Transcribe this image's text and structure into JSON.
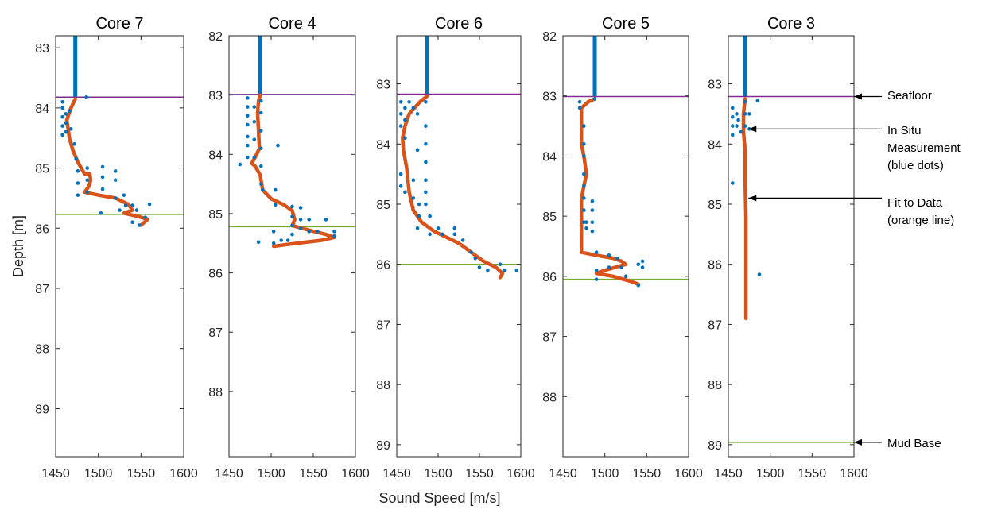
{
  "figure": {
    "ylabel": "Depth [m]",
    "xlabel": "Sound Speed [m/s]"
  },
  "annotations": [
    {
      "lines": [
        "Seafloor"
      ]
    },
    {
      "lines": [
        "In Situ",
        "Measurement",
        "(blue dots)"
      ]
    },
    {
      "lines": [
        "Fit to Data",
        "(orange line)"
      ]
    },
    {
      "lines": [
        "Mud Base"
      ]
    }
  ],
  "colors": {
    "measurement": "#0072BD",
    "fit": "#D95319",
    "seafloor": "#7E2F8E",
    "mud_base": "#77AC30",
    "axis": "#262626"
  },
  "chart_data": [
    {
      "type": "scatter",
      "title": "Core 7",
      "xlim": [
        1450,
        1600
      ],
      "ylim": [
        82.8,
        89.8
      ],
      "y_reversed": true,
      "xticks": [
        1450,
        1500,
        1550,
        1600
      ],
      "yticks": [
        83,
        84,
        85,
        86,
        87,
        88,
        89
      ],
      "seafloor_depth": 83.82,
      "mud_base_depth": 85.77,
      "water_column_speed": 1473,
      "fit": [
        [
          1473,
          83.85
        ],
        [
          1468,
          84.0
        ],
        [
          1463,
          84.2
        ],
        [
          1466,
          84.5
        ],
        [
          1470,
          84.7
        ],
        [
          1476,
          84.9
        ],
        [
          1480,
          85.0
        ],
        [
          1484,
          85.1
        ],
        [
          1490,
          85.1
        ],
        [
          1491,
          85.2
        ],
        [
          1489,
          85.3
        ],
        [
          1484,
          85.4
        ],
        [
          1500,
          85.45
        ],
        [
          1520,
          85.5
        ],
        [
          1535,
          85.6
        ],
        [
          1540,
          85.7
        ],
        [
          1530,
          85.75
        ],
        [
          1545,
          85.8
        ],
        [
          1558,
          85.85
        ],
        [
          1550,
          85.95
        ]
      ],
      "measurements": [
        [
          1458,
          83.9
        ],
        [
          1458,
          84.0
        ],
        [
          1458,
          84.15
        ],
        [
          1458,
          84.3
        ],
        [
          1458,
          84.45
        ],
        [
          1462,
          84.1
        ],
        [
          1462,
          84.25
        ],
        [
          1462,
          84.4
        ],
        [
          1466,
          84.05
        ],
        [
          1468,
          84.35
        ],
        [
          1472,
          84.6
        ],
        [
          1474,
          84.85
        ],
        [
          1476,
          85.05
        ],
        [
          1476,
          85.25
        ],
        [
          1476,
          85.45
        ],
        [
          1486,
          83.82
        ],
        [
          1487,
          85.0
        ],
        [
          1487,
          85.2
        ],
        [
          1487,
          85.4
        ],
        [
          1505,
          84.98
        ],
        [
          1505,
          85.15
        ],
        [
          1505,
          85.35
        ],
        [
          1520,
          85.05
        ],
        [
          1520,
          85.2
        ],
        [
          1520,
          85.5
        ],
        [
          1530,
          85.45
        ],
        [
          1532,
          85.62
        ],
        [
          1540,
          85.62
        ],
        [
          1503,
          85.75
        ],
        [
          1525,
          85.7
        ],
        [
          1545,
          85.7
        ],
        [
          1555,
          85.82
        ],
        [
          1560,
          85.6
        ],
        [
          1548,
          85.95
        ],
        [
          1540,
          85.9
        ]
      ]
    },
    {
      "type": "scatter",
      "title": "Core 4",
      "xlim": [
        1450,
        1600
      ],
      "ylim": [
        82.0,
        89.1
      ],
      "y_reversed": true,
      "xticks": [
        1450,
        1500,
        1550,
        1600
      ],
      "yticks": [
        82,
        83,
        84,
        85,
        86,
        87,
        88
      ],
      "seafloor_depth": 82.99,
      "mud_base_depth": 85.22,
      "water_column_speed": 1487,
      "fit": [
        [
          1487,
          83.0
        ],
        [
          1485,
          83.1
        ],
        [
          1484,
          83.3
        ],
        [
          1485,
          83.6
        ],
        [
          1486,
          83.9
        ],
        [
          1481,
          84.05
        ],
        [
          1477,
          84.15
        ],
        [
          1481,
          84.2
        ],
        [
          1487,
          84.35
        ],
        [
          1490,
          84.6
        ],
        [
          1500,
          84.75
        ],
        [
          1515,
          84.85
        ],
        [
          1525,
          84.95
        ],
        [
          1528,
          85.1
        ],
        [
          1525,
          85.2
        ],
        [
          1545,
          85.28
        ],
        [
          1565,
          85.35
        ],
        [
          1575,
          85.4
        ],
        [
          1560,
          85.45
        ],
        [
          1530,
          85.5
        ],
        [
          1503,
          85.55
        ]
      ],
      "measurements": [
        [
          1472,
          83.05
        ],
        [
          1472,
          83.2
        ],
        [
          1472,
          83.35
        ],
        [
          1472,
          83.5
        ],
        [
          1472,
          83.7
        ],
        [
          1472,
          83.85
        ],
        [
          1472,
          84.05
        ],
        [
          1480,
          83.2
        ],
        [
          1480,
          83.45
        ],
        [
          1480,
          83.75
        ],
        [
          1480,
          84.05
        ],
        [
          1488,
          83.1
        ],
        [
          1488,
          83.3
        ],
        [
          1488,
          83.6
        ],
        [
          1488,
          83.9
        ],
        [
          1488,
          84.2
        ],
        [
          1488,
          84.5
        ],
        [
          1463,
          84.17
        ],
        [
          1508,
          83.85
        ],
        [
          1490,
          84.6
        ],
        [
          1505,
          84.6
        ],
        [
          1505,
          84.85
        ],
        [
          1525,
          84.88
        ],
        [
          1525,
          85.05
        ],
        [
          1525,
          85.2
        ],
        [
          1525,
          85.35
        ],
        [
          1535,
          84.9
        ],
        [
          1535,
          85.1
        ],
        [
          1535,
          85.25
        ],
        [
          1545,
          85.1
        ],
        [
          1545,
          85.3
        ],
        [
          1555,
          85.3
        ],
        [
          1565,
          85.1
        ],
        [
          1575,
          85.3
        ],
        [
          1575,
          85.38
        ],
        [
          1485,
          85.48
        ],
        [
          1503,
          85.5
        ],
        [
          1512,
          85.45
        ],
        [
          1520,
          85.45
        ],
        [
          1503,
          85.3
        ]
      ]
    },
    {
      "type": "scatter",
      "title": "Core 6",
      "xlim": [
        1450,
        1600
      ],
      "ylim": [
        82.2,
        89.2
      ],
      "y_reversed": true,
      "xticks": [
        1450,
        1500,
        1550,
        1600
      ],
      "yticks": [
        83,
        84,
        85,
        86,
        87,
        88,
        89
      ],
      "seafloor_depth": 83.17,
      "mud_base_depth": 86.0,
      "water_column_speed": 1487,
      "fit": [
        [
          1487,
          83.2
        ],
        [
          1478,
          83.3
        ],
        [
          1465,
          83.5
        ],
        [
          1460,
          83.7
        ],
        [
          1457,
          83.9
        ],
        [
          1458,
          84.1
        ],
        [
          1462,
          84.4
        ],
        [
          1465,
          84.8
        ],
        [
          1470,
          85.1
        ],
        [
          1480,
          85.3
        ],
        [
          1495,
          85.45
        ],
        [
          1510,
          85.55
        ],
        [
          1525,
          85.65
        ],
        [
          1540,
          85.8
        ],
        [
          1555,
          85.95
        ],
        [
          1570,
          86.05
        ],
        [
          1578,
          86.15
        ],
        [
          1575,
          86.22
        ]
      ],
      "measurements": [
        [
          1455,
          83.3
        ],
        [
          1455,
          83.5
        ],
        [
          1455,
          83.7
        ],
        [
          1455,
          84.5
        ],
        [
          1455,
          84.7
        ],
        [
          1460,
          83.4
        ],
        [
          1460,
          83.6
        ],
        [
          1460,
          83.9
        ],
        [
          1460,
          84.8
        ],
        [
          1465,
          83.3
        ],
        [
          1470,
          83.4
        ],
        [
          1470,
          84.6
        ],
        [
          1470,
          84.9
        ],
        [
          1475,
          83.5
        ],
        [
          1475,
          84.1
        ],
        [
          1477,
          85.0
        ],
        [
          1477,
          85.2
        ],
        [
          1485,
          83.3
        ],
        [
          1485,
          83.7
        ],
        [
          1485,
          84.0
        ],
        [
          1485,
          84.3
        ],
        [
          1485,
          84.6
        ],
        [
          1485,
          84.8
        ],
        [
          1485,
          85.0
        ],
        [
          1475,
          85.4
        ],
        [
          1490,
          85.2
        ],
        [
          1490,
          85.5
        ],
        [
          1500,
          85.4
        ],
        [
          1505,
          85.5
        ],
        [
          1520,
          85.4
        ],
        [
          1520,
          85.5
        ],
        [
          1530,
          85.6
        ],
        [
          1540,
          85.8
        ],
        [
          1545,
          85.9
        ],
        [
          1550,
          86.05
        ],
        [
          1560,
          86.1
        ],
        [
          1575,
          86.0
        ],
        [
          1580,
          86.1
        ],
        [
          1595,
          86.1
        ]
      ]
    },
    {
      "type": "scatter",
      "title": "Core 5",
      "xlim": [
        1450,
        1600
      ],
      "ylim": [
        82.0,
        89.0
      ],
      "y_reversed": true,
      "xticks": [
        1450,
        1500,
        1550,
        1600
      ],
      "yticks": [
        82,
        83,
        84,
        85,
        86,
        87,
        88
      ],
      "seafloor_depth": 83.01,
      "mud_base_depth": 86.05,
      "water_column_speed": 1488,
      "fit": [
        [
          1488,
          83.05
        ],
        [
          1480,
          83.1
        ],
        [
          1472,
          83.2
        ],
        [
          1472,
          83.8
        ],
        [
          1475,
          84.0
        ],
        [
          1478,
          84.3
        ],
        [
          1472,
          84.7
        ],
        [
          1472,
          85.2
        ],
        [
          1472,
          85.6
        ],
        [
          1490,
          85.65
        ],
        [
          1510,
          85.7
        ],
        [
          1520,
          85.75
        ],
        [
          1525,
          85.8
        ],
        [
          1500,
          85.9
        ],
        [
          1490,
          85.95
        ],
        [
          1510,
          86.0
        ],
        [
          1530,
          86.08
        ],
        [
          1540,
          86.13
        ]
      ],
      "measurements": [
        [
          1470,
          83.1
        ],
        [
          1470,
          83.2
        ],
        [
          1475,
          83.5
        ],
        [
          1475,
          83.8
        ],
        [
          1475,
          84.0
        ],
        [
          1475,
          84.3
        ],
        [
          1475,
          84.5
        ],
        [
          1475,
          84.7
        ],
        [
          1475,
          84.9
        ],
        [
          1475,
          85.1
        ],
        [
          1478,
          85.1
        ],
        [
          1478,
          85.2
        ],
        [
          1485,
          84.75
        ],
        [
          1485,
          84.9
        ],
        [
          1485,
          85.1
        ],
        [
          1485,
          85.25
        ],
        [
          1488,
          83.05
        ],
        [
          1490,
          85.6
        ],
        [
          1490,
          85.9
        ],
        [
          1490,
          86.05
        ],
        [
          1505,
          85.65
        ],
        [
          1505,
          85.85
        ],
        [
          1515,
          85.7
        ],
        [
          1520,
          85.85
        ],
        [
          1525,
          86.0
        ],
        [
          1540,
          85.8
        ],
        [
          1545,
          85.75
        ],
        [
          1545,
          85.85
        ],
        [
          1540,
          86.15
        ]
      ]
    },
    {
      "type": "scatter",
      "title": "Core 3",
      "xlim": [
        1450,
        1600
      ],
      "ylim": [
        82.2,
        89.2
      ],
      "y_reversed": true,
      "xticks": [
        1450,
        1500,
        1550,
        1600
      ],
      "yticks": [
        83,
        84,
        85,
        86,
        87,
        88,
        89
      ],
      "seafloor_depth": 83.21,
      "mud_base_depth": 88.96,
      "water_column_speed": 1470,
      "fit": [
        [
          1470,
          83.25
        ],
        [
          1468,
          83.5
        ],
        [
          1468,
          83.8
        ],
        [
          1470,
          84.1
        ],
        [
          1470,
          84.6
        ],
        [
          1471,
          85.2
        ],
        [
          1471,
          85.8
        ],
        [
          1471,
          86.4
        ],
        [
          1471,
          86.9
        ]
      ],
      "measurements": [
        [
          1455,
          83.4
        ],
        [
          1455,
          83.55
        ],
        [
          1455,
          83.7
        ],
        [
          1455,
          83.85
        ],
        [
          1460,
          83.5
        ],
        [
          1460,
          83.7
        ],
        [
          1462,
          83.6
        ],
        [
          1465,
          83.8
        ],
        [
          1470,
          83.3
        ],
        [
          1470,
          83.5
        ],
        [
          1470,
          83.7
        ],
        [
          1475,
          83.5
        ],
        [
          1475,
          83.75
        ],
        [
          1485,
          83.28
        ],
        [
          1455,
          84.65
        ],
        [
          1487,
          86.17
        ]
      ]
    }
  ]
}
